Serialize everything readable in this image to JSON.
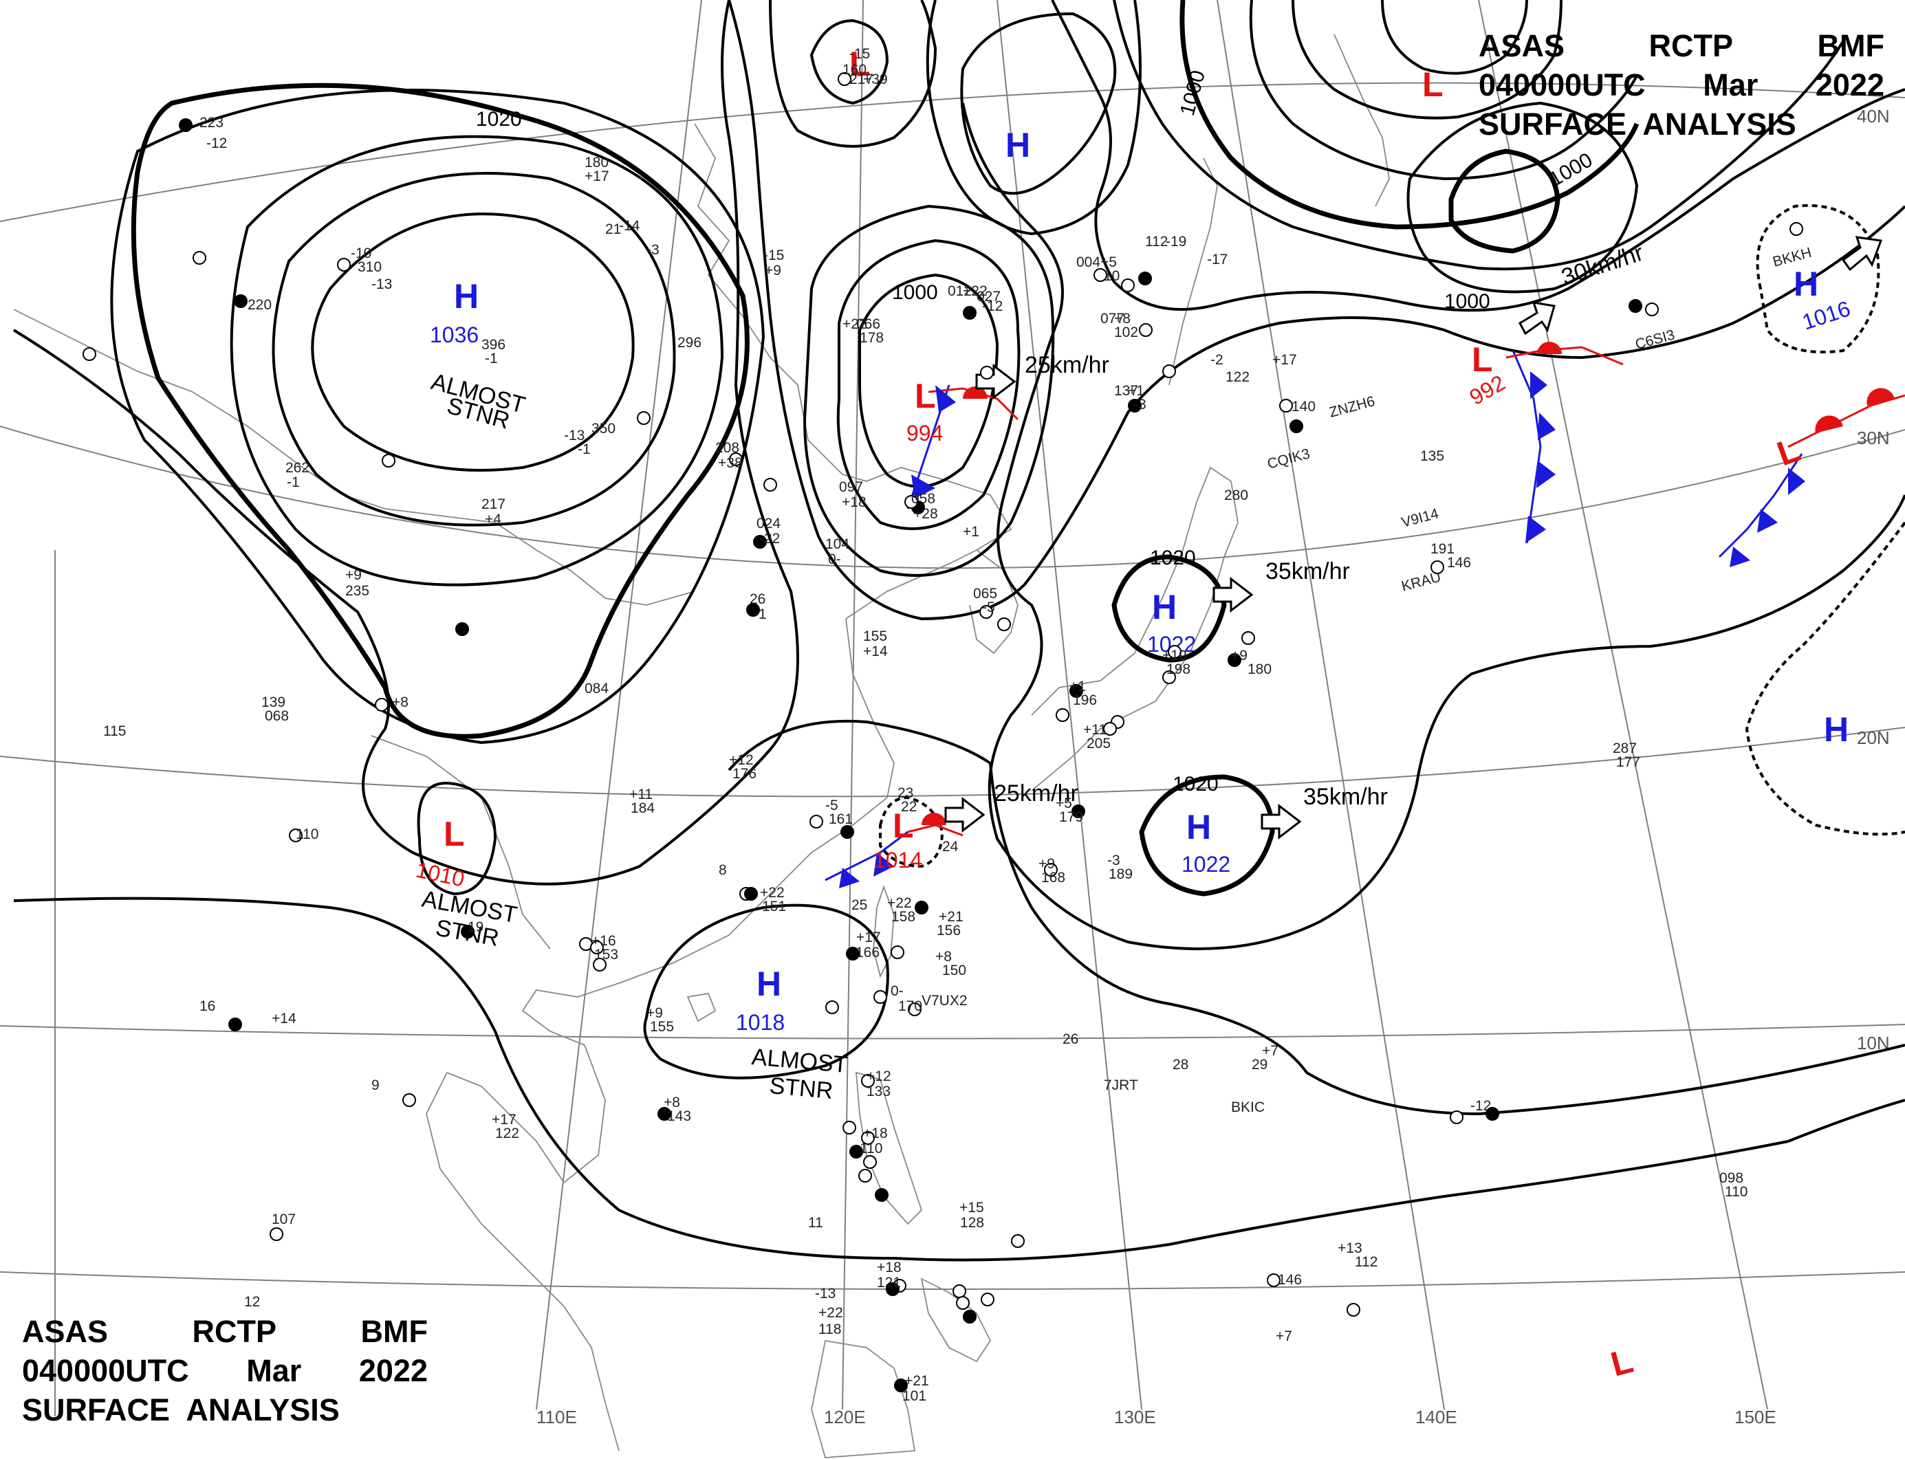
{
  "title": {
    "line1": [
      "ASAS",
      "RCTP",
      "BMF"
    ],
    "line2": [
      "040000UTC",
      "Mar",
      "2022"
    ],
    "line3": "SURFACE  ANALYSIS"
  },
  "graticule": {
    "lat_labels": [
      "40N",
      "30N",
      "20N",
      "10N"
    ],
    "lon_labels": [
      "110E",
      "120E",
      "130E",
      "140E",
      "150E"
    ]
  },
  "isobar_labels": [
    "1020",
    "1000",
    "1000",
    "1000",
    "1000",
    "1020",
    "1020"
  ],
  "pressure_centers": [
    {
      "type": "H",
      "value": "1036",
      "note": "ALMOST STNR"
    },
    {
      "type": "L",
      "value": "994"
    },
    {
      "type": "H",
      "value": ""
    },
    {
      "type": "L",
      "value": ""
    },
    {
      "type": "L",
      "value": "992"
    },
    {
      "type": "H",
      "value": "1016"
    },
    {
      "type": "H",
      "value": "1022"
    },
    {
      "type": "H",
      "value": "1022"
    },
    {
      "type": "L",
      "value": "1010",
      "note": "ALMOST STNR"
    },
    {
      "type": "L",
      "value": "1014"
    },
    {
      "type": "H",
      "value": "1018",
      "note": "ALMOST STNR"
    },
    {
      "type": "H",
      "value": ""
    },
    {
      "type": "L",
      "value": ""
    },
    {
      "type": "L",
      "value": ""
    },
    {
      "type": "L",
      "value": ""
    }
  ],
  "motion_labels": [
    "25km/hr",
    "30km/hr",
    "35km/hr",
    "25km/hr",
    "35km/hr"
  ],
  "station_ids": [
    "C6SI3",
    "BKKH",
    "ZNZH6",
    "CQIK3",
    "V9I14",
    "KRAU",
    "V7UX2",
    "7JRT",
    "BKIC"
  ],
  "station_obs": [
    "223",
    "-12",
    "220",
    "310",
    "-10",
    "-13",
    "396",
    "-1",
    "-13",
    "350",
    "-1",
    "180",
    "+17",
    "21",
    "-14",
    "-3",
    "296",
    "-15",
    "160",
    "-15",
    "+9",
    "066",
    "+22",
    "178",
    "+22",
    "012",
    "-12",
    "+5",
    "004",
    "10",
    "-19",
    "112",
    "-17",
    "+8",
    "077",
    "102",
    "+1",
    "137",
    "-3",
    "-2",
    "122",
    "+17",
    "140",
    "135",
    "280",
    "191",
    "146",
    "+19",
    "198",
    "+9",
    "180",
    "+11",
    "205",
    "+1",
    "196",
    "+9",
    "168",
    "-3",
    "189",
    "+5",
    "179",
    "-5",
    "161",
    "+22",
    "158",
    "+21",
    "156",
    "+8",
    "150",
    "0-",
    "170",
    "+17",
    "166",
    "+12",
    "133",
    "+18",
    "110",
    "+15",
    "128",
    "+18",
    "121",
    "+22",
    "118",
    "+21",
    "101",
    "+13",
    "112",
    "+7",
    "098",
    "110",
    "+7",
    "287",
    "177",
    "+11",
    "184",
    "+12",
    "176",
    "+22",
    "151",
    "+16",
    "153",
    "+9",
    "155",
    "+8",
    "143",
    "+17",
    "122",
    "+14",
    "107",
    "110",
    "115",
    "139",
    "068",
    "+8",
    "084",
    "+9",
    "235",
    "262",
    "-1",
    "217",
    "+4",
    "26",
    "-1",
    "155",
    "+14",
    "104",
    "0-",
    "097",
    "+18",
    "058",
    "+28",
    "024",
    "-22",
    "208",
    "+38",
    "217",
    "+39",
    "027",
    "+1",
    "065",
    "-5",
    "11",
    "-13",
    "146",
    "-12",
    "29",
    "28",
    "26",
    "25",
    "23",
    "22",
    "19",
    "16",
    "12",
    "9",
    "8",
    "24"
  ]
}
